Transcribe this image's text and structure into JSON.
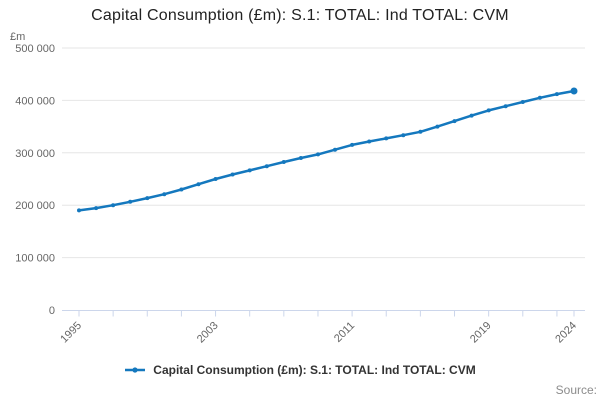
{
  "title": "Capital Consumption (£m): S.1: TOTAL: Ind TOTAL: CVM",
  "y_axis_unit": "£m",
  "source_label": "Source:",
  "legend": {
    "label": "Capital Consumption (£m): S.1: TOTAL: Ind TOTAL: CVM",
    "marker": "line-with-dot-icon"
  },
  "colors": {
    "series": "#1478be",
    "grid": "#e6e6e6",
    "axis": "#ccd6eb",
    "tick_text": "#666666",
    "title_text": "#222222"
  },
  "chart_data": {
    "type": "line",
    "title": "Capital Consumption (£m): S.1: TOTAL: Ind TOTAL: CVM",
    "xlabel": "",
    "ylabel": "£m",
    "ylim": [
      0,
      500000
    ],
    "grid": "horizontal",
    "legend_position": "bottom-center",
    "x": [
      1995,
      1996,
      1997,
      1998,
      1999,
      2000,
      2001,
      2002,
      2003,
      2004,
      2005,
      2006,
      2007,
      2008,
      2009,
      2010,
      2011,
      2012,
      2013,
      2014,
      2015,
      2016,
      2017,
      2018,
      2019,
      2020,
      2021,
      2022,
      2023,
      2024
    ],
    "series": [
      {
        "name": "Capital Consumption (£m): S.1: TOTAL: Ind TOTAL: CVM",
        "values": [
          190000,
          194500,
          200000,
          206500,
          213500,
          221000,
          230000,
          240000,
          250000,
          258500,
          266500,
          274500,
          282500,
          290000,
          297000,
          306000,
          315000,
          321500,
          327500,
          333500,
          340000,
          350000,
          360500,
          371000,
          381000,
          389000,
          397000,
          405000,
          412000,
          418000
        ]
      }
    ],
    "yticks": [
      {
        "value": 500000,
        "label": "500 000"
      },
      {
        "value": 400000,
        "label": "400 000"
      },
      {
        "value": 300000,
        "label": "300 000"
      },
      {
        "value": 200000,
        "label": "200 000"
      },
      {
        "value": 100000,
        "label": "100 000"
      },
      {
        "value": 0,
        "label": "0"
      }
    ],
    "xtick_years": [
      1995,
      1997,
      1999,
      2001,
      2003,
      2005,
      2007,
      2009,
      2011,
      2013,
      2015,
      2017,
      2019,
      2021,
      2023,
      2024
    ],
    "xtick_labels": [
      {
        "year": 1995,
        "label": "1995"
      },
      {
        "year": 2003,
        "label": "2003"
      },
      {
        "year": 2011,
        "label": "2011"
      },
      {
        "year": 2019,
        "label": "2019"
      },
      {
        "year": 2024,
        "label": "2024"
      }
    ]
  }
}
